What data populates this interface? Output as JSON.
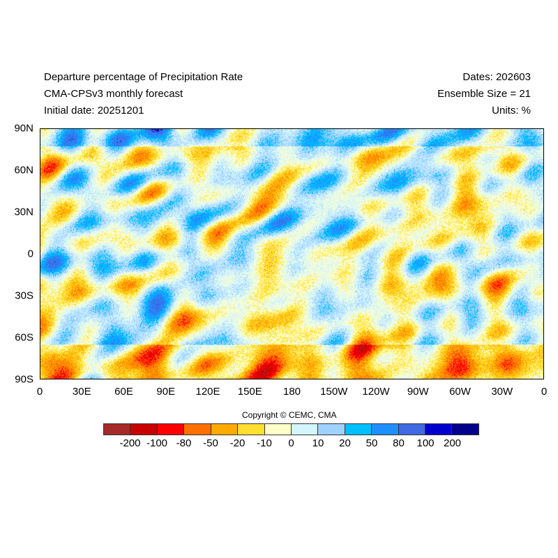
{
  "header": {
    "title_lines": [
      "Departure percentage of Precipitation Rate",
      "CMA-CPSv3 monthly forecast",
      "Initial date: 20251201"
    ],
    "right_lines": [
      "Dates: 202603",
      "Ensemble Size = 21",
      "Units: %"
    ]
  },
  "axes": {
    "x_labels": [
      "0",
      "30E",
      "60E",
      "90E",
      "120E",
      "150E",
      "180",
      "150W",
      "120W",
      "90W",
      "60W",
      "30W",
      "0"
    ],
    "y_labels": [
      "90N",
      "60N",
      "30N",
      "0",
      "30S",
      "60S",
      "90S"
    ]
  },
  "copyright": "Copyright © CEMC, CMA",
  "colorbar": {
    "labels": [
      "-200",
      "-100",
      "-80",
      "-50",
      "-20",
      "-10",
      "0",
      "10",
      "20",
      "50",
      "80",
      "100",
      "200"
    ],
    "colors": [
      "#A52A2A",
      "#C80000",
      "#FF0000",
      "#FF7000",
      "#FFAA00",
      "#FFE030",
      "#FFFFC8",
      "#D2F5FF",
      "#A0D2FF",
      "#00BFFF",
      "#1E90FF",
      "#4169E1",
      "#0000CD",
      "#00008B"
    ]
  }
}
